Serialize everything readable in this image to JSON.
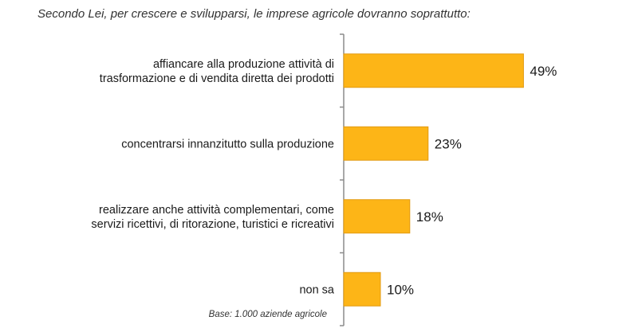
{
  "title": "Secondo Lei, per crescere e svilupparsi, le imprese agricole dovranno soprattutto:",
  "note": "Base: 1.000 aziende agricole",
  "colors": {
    "bar_fill": "#FDB517",
    "bar_stroke": "#E29A10",
    "axis": "#8c8c8c",
    "text": "#1a1a1a"
  },
  "chart_data": {
    "type": "bar",
    "orientation": "horizontal",
    "categories": [
      [
        "affiancare alla produzione attività di",
        "trasformazione e di vendita diretta dei prodotti"
      ],
      [
        "concentrarsi innanzitutto sulla produzione"
      ],
      [
        "realizzare anche attività complementari, come",
        "servizi ricettivi, di ritorazione, turistici e ricreativi"
      ],
      [
        "non sa"
      ]
    ],
    "values": [
      49,
      23,
      18,
      10
    ],
    "value_labels": [
      "49%",
      "23%",
      "18%",
      "10%"
    ],
    "unit": "%",
    "xlim": [
      0,
      100
    ],
    "grid": false,
    "legend": "none"
  }
}
